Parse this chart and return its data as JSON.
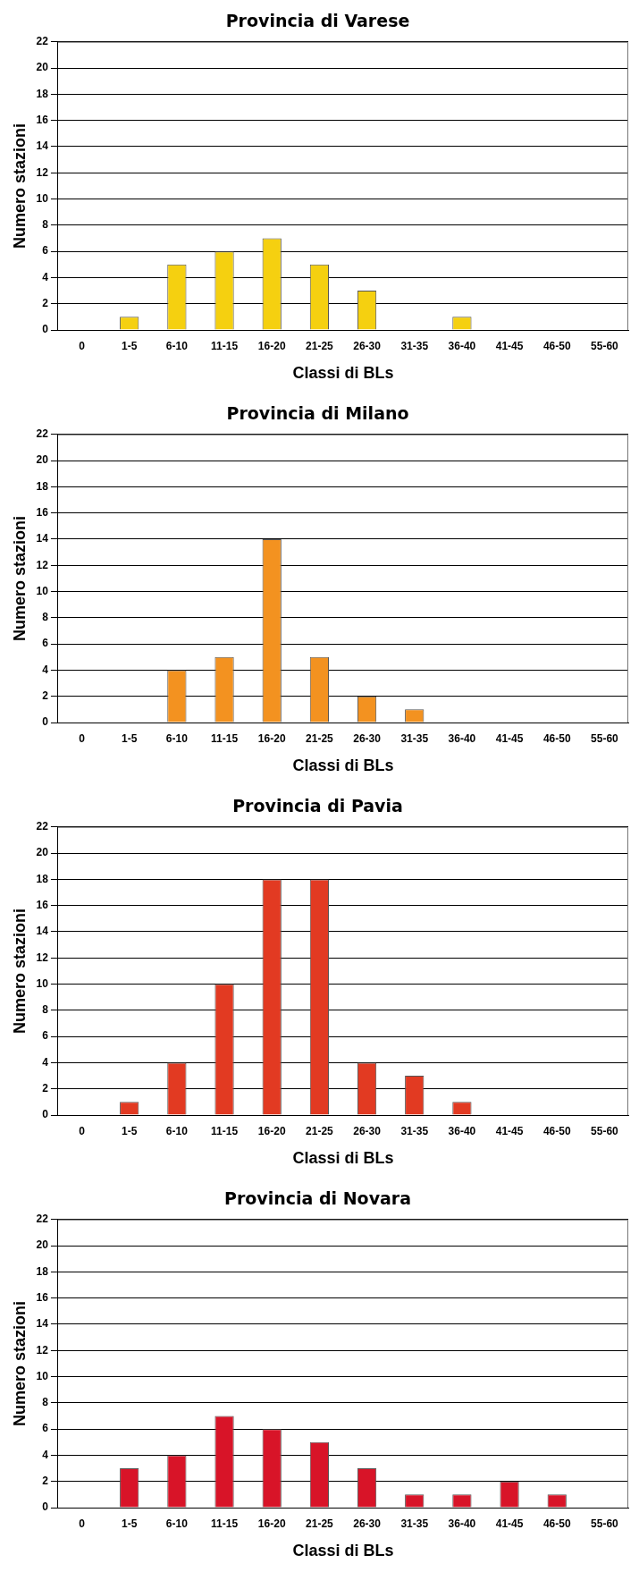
{
  "chart_data": [
    {
      "type": "bar",
      "title": "Provincia di Varese",
      "xlabel": "Classi di BLs",
      "ylabel": "Numero stazioni",
      "categories": [
        "0",
        "1-5",
        "6-10",
        "11-15",
        "16-20",
        "21-25",
        "26-30",
        "31-35",
        "36-40",
        "41-45",
        "46-50",
        "55-60"
      ],
      "values": [
        0,
        1,
        5,
        6,
        7,
        5,
        3,
        0,
        1,
        0,
        0,
        0
      ],
      "color": "#f5d010",
      "ylim": [
        0,
        22
      ],
      "yticks": [
        0,
        2,
        4,
        6,
        8,
        10,
        12,
        14,
        16,
        18,
        20,
        22
      ],
      "grid": "y"
    },
    {
      "type": "bar",
      "title": "Provincia di Milano",
      "xlabel": "Classi di BLs",
      "ylabel": "Numero stazioni",
      "categories": [
        "0",
        "1-5",
        "6-10",
        "11-15",
        "16-20",
        "21-25",
        "26-30",
        "31-35",
        "36-40",
        "41-45",
        "46-50",
        "55-60"
      ],
      "values": [
        0,
        0,
        4,
        5,
        14,
        5,
        2,
        1,
        0,
        0,
        0,
        0
      ],
      "color": "#f39220",
      "ylim": [
        0,
        22
      ],
      "yticks": [
        0,
        2,
        4,
        6,
        8,
        10,
        12,
        14,
        16,
        18,
        20,
        22
      ],
      "grid": "y"
    },
    {
      "type": "bar",
      "title": "Provincia di Pavia",
      "xlabel": "Classi di BLs",
      "ylabel": "Numero stazioni",
      "categories": [
        "0",
        "1-5",
        "6-10",
        "11-15",
        "16-20",
        "21-25",
        "26-30",
        "31-35",
        "36-40",
        "41-45",
        "46-50",
        "55-60"
      ],
      "values": [
        0,
        1,
        4,
        10,
        18,
        18,
        4,
        3,
        1,
        0,
        0,
        0
      ],
      "color": "#e23a22",
      "ylim": [
        0,
        22
      ],
      "yticks": [
        0,
        2,
        4,
        6,
        8,
        10,
        12,
        14,
        16,
        18,
        20,
        22
      ],
      "grid": "y"
    },
    {
      "type": "bar",
      "title": "Provincia di Novara",
      "xlabel": "Classi di BLs",
      "ylabel": "Numero stazioni",
      "categories": [
        "0",
        "1-5",
        "6-10",
        "11-15",
        "16-20",
        "21-25",
        "26-30",
        "31-35",
        "36-40",
        "41-45",
        "46-50",
        "55-60"
      ],
      "values": [
        0,
        3,
        4,
        7,
        6,
        5,
        3,
        1,
        1,
        2,
        1,
        0
      ],
      "color": "#d81428",
      "ylim": [
        0,
        22
      ],
      "yticks": [
        0,
        2,
        4,
        6,
        8,
        10,
        12,
        14,
        16,
        18,
        20,
        22
      ],
      "grid": "y"
    }
  ]
}
